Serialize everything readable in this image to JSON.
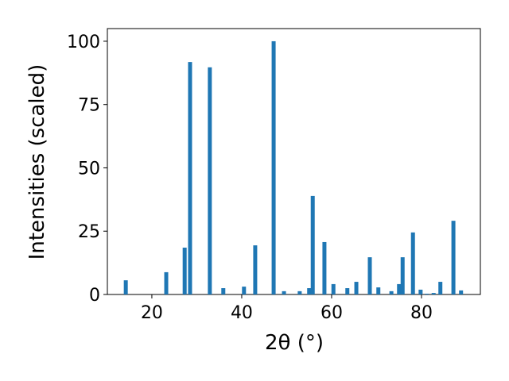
{
  "chart_data": {
    "type": "bar",
    "xlabel": "2θ (°)",
    "ylabel": "Intensities (scaled)",
    "color": "#1f77b4",
    "x": [
      14.2,
      23.2,
      27.3,
      28.5,
      32.9,
      35.9,
      40.5,
      43.0,
      47.1,
      49.4,
      52.9,
      55.0,
      55.8,
      58.4,
      60.4,
      63.5,
      65.5,
      68.5,
      70.4,
      73.3,
      75.0,
      75.8,
      78.1,
      79.8,
      81.2,
      82.7,
      84.2,
      87.1,
      88.8
    ],
    "values": [
      5.6,
      8.8,
      18.5,
      91.8,
      89.7,
      2.5,
      3.1,
      19.4,
      100,
      1.3,
      1.3,
      2.5,
      38.9,
      20.7,
      4.1,
      2.5,
      5.0,
      14.7,
      2.8,
      1.3,
      4.1,
      14.7,
      24.5,
      1.9,
      0.3,
      0.6,
      5.0,
      29.1,
      1.6
    ],
    "xlim": [
      10.1,
      93.1
    ],
    "ylim": [
      0,
      105
    ],
    "xticks": [
      20,
      40,
      60,
      80
    ],
    "yticks": [
      0,
      25,
      50,
      75,
      100
    ],
    "grid": false
  }
}
